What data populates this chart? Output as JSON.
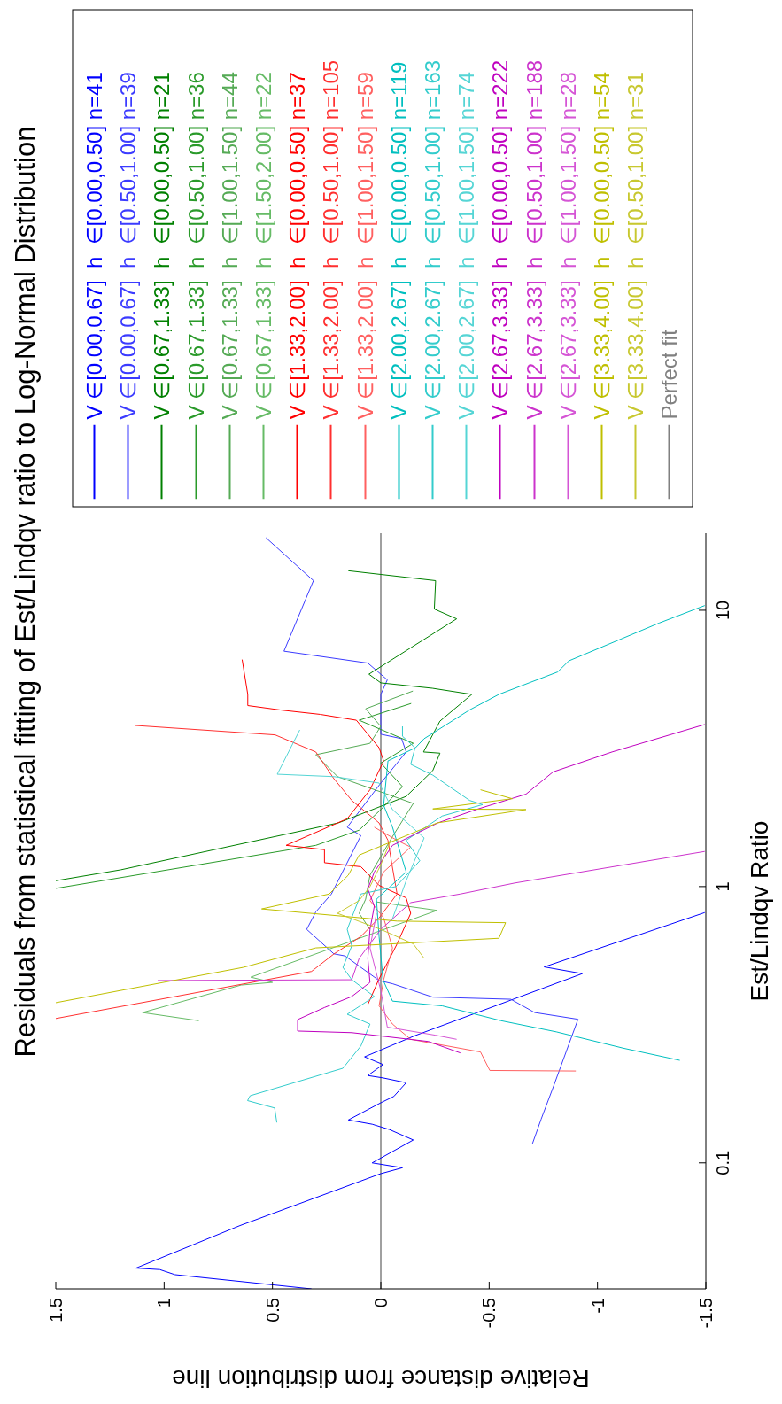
{
  "chart_data": {
    "type": "line",
    "title": "Residuals from statistical fitting of Est/Lindqv ratio to Log-Normal Distribution",
    "xlabel": "Relative distance from distribution line",
    "ylabel": "Est/Lindqv Ratio",
    "log": "y",
    "grid": false,
    "legend": "top",
    "marker": "none",
    "line_style": "solid",
    "xlim": [
      1.5,
      -1.5
    ],
    "ylim": [
      0.035,
      19
    ],
    "xticks": [
      1.5,
      1,
      0.5,
      0,
      -0.5,
      -1,
      -1.5
    ],
    "yticks": [
      0.1,
      1,
      10
    ],
    "series": [
      {
        "name": "V ∈[0.00,0.67]  h  ∈[0.00,0.50] n=41",
        "color": "#0000ff",
        "values": [
          0.035,
          0.0394,
          0.0411,
          0.0416,
          0.0593,
          0.0914,
          0.096,
          0.1,
          0.121,
          0.132,
          0.138,
          0.143,
          0.165,
          0.174,
          0.195,
          0.203,
          0.207,
          0.227,
          0.242,
          0.289,
          0.484,
          0.512,
          0.805
        ],
        "x": [
          0.32,
          0.95,
          1.02,
          1.13,
          0.65,
          0,
          -0.1,
          0.04,
          -0.15,
          -0.04,
          0.04,
          0.15,
          0,
          -0.06,
          -0.117,
          -0.01,
          0.06,
          -0.01,
          0.075,
          -0.159,
          -0.93,
          -0.754,
          -1.495
        ]
      },
      {
        "name": "V ∈[0.00,0.67]  h  ∈[0.50,1.00] n=39",
        "color": "#3b3bff",
        "values": [
          0.1175,
          0.144,
          0.192,
          0.331,
          0.35,
          0.391,
          0.398,
          0.445,
          0.457,
          0.561,
          0.571,
          0.7,
          0.81,
          0.94,
          1.53,
          1.64,
          2.37,
          3.07,
          3.43,
          3.56,
          4.96,
          5.6,
          6.44,
          7.11,
          12.8,
          18.3
        ],
        "x": [
          -0.7,
          -0.74,
          -0.8,
          -0.91,
          -0.71,
          -0.6,
          -0.24,
          -0.054,
          0.008,
          0.165,
          0.217,
          0.342,
          0.3,
          0.228,
          0.092,
          0.155,
          0,
          -0.117,
          -0.096,
          0,
          0,
          -0.03,
          0.06,
          0.447,
          0.311,
          0.53
        ]
      },
      {
        "name": "V ∈[0.67,1.33]  h  ∈[0.00,0.50] n=21",
        "color": "#008000",
        "values": [
          1.05,
          1.15,
          1.7,
          2.12,
          2.63,
          3.04,
          3.07,
          3.97,
          4.96,
          5.22,
          5.46,
          5.87,
          9.31,
          10.1,
          12.8,
          13.9
        ],
        "x": [
          1.5,
          1.2,
          0.196,
          -0.117,
          -0.24,
          -0.273,
          -0.197,
          -0.273,
          -0.42,
          -0.238,
          0,
          0.055,
          -0.35,
          -0.247,
          -0.253,
          0.15
        ]
      },
      {
        "name": "V ∈[0.67,1.33]  h  ∈[0.50,1.00] n=36",
        "color": "#2a9a2a",
        "values": [
          0.985,
          1.41,
          1.6,
          1.9,
          2.3,
          2.8,
          3.3,
          4,
          4.6
        ],
        "x": [
          1.5,
          0.3,
          0.1,
          0,
          -0.1,
          0,
          -0.15,
          0.1,
          -0.14
        ]
      },
      {
        "name": "V ∈[0.67,1.33]  h  ∈[1.00,1.50] n=44",
        "color": "#55aa55",
        "values": [
          0.7,
          0.8,
          0.9,
          1.1,
          1.5,
          2,
          2.5,
          3,
          3.3,
          3.8,
          4.4,
          5.1
        ],
        "x": [
          0.05,
          0.1,
          0.07,
          0.05,
          -0.05,
          -0.15,
          0.2,
          0.3,
          0.05,
          0,
          0.07,
          -0.148
        ]
      },
      {
        "name": "V ∈[0.67,1.33]  h  ∈[1.50,2.00] n=22",
        "color": "#66bb66",
        "values": [
          0.327,
          0.35,
          0.44,
          0.45,
          0.47,
          0.82,
          0.88
        ],
        "x": [
          0.84,
          1.1,
          0.645,
          0.5,
          0.6,
          -0.26,
          0.02
        ]
      },
      {
        "name": "V ∈[1.33,2.00]  h  ∈[0.00,0.50] n=37",
        "color": "#ff0000",
        "values": [
          0.374,
          0.46,
          0.62,
          0.8,
          0.91,
          1.01,
          1.18,
          1.22,
          1.36,
          1.41,
          1.76,
          2.24,
          2.85,
          3.18,
          4,
          4.2,
          4.35,
          4.52,
          4.96,
          6.63
        ],
        "x": [
          0.06,
          0.01,
          -0.075,
          -0.138,
          -0.117,
          0.008,
          0.092,
          0.26,
          0.26,
          0.437,
          0.155,
          0.05,
          -0.013,
          0.008,
          0.113,
          0.28,
          0.457,
          0.614,
          0.614,
          0.64
        ]
      },
      {
        "name": "V ∈[1.33,2.00]  h  ∈[0.50,1.00] n=105",
        "color": "#ff3030",
        "values": [
          0.333,
          0.493,
          0.57,
          0.66,
          0.77,
          0.94,
          1.22,
          1.47,
          1.7,
          2.05,
          2.46,
          3.07,
          3.54,
          3.83
        ],
        "x": [
          1.5,
          0.32,
          0.217,
          0.092,
          0.008,
          -0.075,
          -0.05,
          -0.033,
          0.008,
          0.134,
          0.217,
          0.3,
          0.488,
          1.135
        ]
      },
      {
        "name": "V ∈[1.33,2.00]  h  ∈[1.00,1.50] n=59",
        "color": "#ff6060",
        "values": [
          0.215,
          0.216,
          0.252,
          0.28,
          0.318,
          0.37,
          0.46,
          0.6,
          0.77,
          0.89,
          1.13,
          1.39,
          1.47,
          1.64
        ],
        "x": [
          -0.9,
          -0.503,
          -0.46,
          -0.138,
          -0.054,
          0.008,
          -0.013,
          -0.054,
          -0.013,
          0.05,
          -0.013,
          -0.138,
          -0.075,
          0.03
        ]
      },
      {
        "name": "V ∈[2.00,2.67]  h  ∈[0.00,0.50] n=119",
        "color": "#00bfbf",
        "values": [
          0.235,
          0.26,
          0.298,
          0.327,
          0.37,
          0.385,
          0.46,
          0.66,
          0.9,
          1.13,
          1.64,
          1.97,
          2.85,
          3.18,
          3.43,
          4.36,
          4.96,
          5.98,
          6.56,
          9,
          10.4
        ],
        "x": [
          -1.38,
          -1.12,
          -0.81,
          -0.555,
          -0.284,
          -0.054,
          -0.01,
          0.008,
          0.02,
          -0.117,
          -0.054,
          -0.013,
          -0.033,
          -0.16,
          -0.2,
          -0.41,
          -0.545,
          -0.816,
          -0.868,
          -1.286,
          -1.495
        ]
      },
      {
        "name": "V ∈[2.00,2.67]  h  ∈[0.50,1.00] n=163",
        "color": "#33cccc",
        "values": [
          0.14,
          0.158,
          0.168,
          0.175,
          0.22,
          0.265,
          0.318,
          0.345,
          0.4,
          0.46,
          0.51,
          0.61,
          0.7,
          0.94,
          1,
          1.24,
          1.47,
          1.8,
          1.98,
          2.05,
          2.53,
          2.77,
          3.18,
          3.5,
          3.8
        ],
        "x": [
          0.48,
          0.49,
          0.615,
          0.603,
          0.175,
          0.092,
          0.05,
          0.155,
          0.03,
          0.134,
          0.175,
          0.134,
          0.155,
          0.092,
          -0.07,
          -0.18,
          -0.117,
          -0.283,
          -0.47,
          -0.41,
          -0.24,
          -0.138,
          -0.158,
          -0.1,
          -0.1
        ]
      },
      {
        "name": "V ∈[2.00,2.67]  h  ∈[1.00,1.50] n=74",
        "color": "#55d5d5",
        "values": [
          0.75,
          1.05,
          1.5,
          1.9,
          2.37,
          2.5,
          2.55,
          3.69
        ],
        "x": [
          -0.05,
          -0.117,
          -0.2,
          -0.054,
          0.008,
          0.217,
          0.478,
          0.374
        ]
      },
      {
        "name": "V ∈[2.67,3.33]  h  ∈[0.00,0.50] n=222",
        "color": "#bf00bf",
        "values": [
          0.25,
          0.275,
          0.296,
          0.3,
          0.33,
          0.365,
          0.4,
          0.45,
          0.55,
          0.7,
          0.85,
          0.98,
          1.13,
          1.41,
          1.7,
          1.9,
          2.16,
          2.6,
          3.07,
          3.86
        ],
        "x": [
          -0.367,
          -0.22,
          0.134,
          0.384,
          0.384,
          0.26,
          0.134,
          0.05,
          0.06,
          0.05,
          0.03,
          0.06,
          0.03,
          -0.054,
          -0.263,
          -0.44,
          -0.67,
          -0.795,
          -1.067,
          -1.495
        ]
      },
      {
        "name": "V ∈[2.67,3.33]  h  ∈[0.50,1.00] n=188",
        "color": "#cc33cc",
        "values": [
          0.457,
          0.46,
          0.55,
          0.7,
          0.875,
          0.94,
          1.03,
          1.34
        ],
        "x": [
          1.03,
          0.134,
          0.1,
          0,
          -0.138,
          -0.367,
          -0.618,
          -1.495
        ]
      },
      {
        "name": "V ∈[2.67,3.33]  h  ∈[1.00,1.50] n=28",
        "color": "#d555d5",
        "values": [
          0.28,
          0.29,
          0.31,
          0.42,
          0.6,
          0.8
        ],
        "x": [
          -0.35,
          -0.25,
          -0.03,
          0,
          0.05,
          0.02
        ]
      },
      {
        "name": "V ∈[3.33,4.00]  h  ∈[0.00,0.50] n=54",
        "color": "#bfbf00",
        "values": [
          0.38,
          0.51,
          0.6,
          0.65,
          0.74,
          0.75,
          0.83,
          0.94,
          1.1,
          1.3,
          1.7,
          1.9,
          1.91,
          2.08,
          2.24
        ],
        "x": [
          1.5,
          0.635,
          0.3,
          -0.545,
          -0.576,
          -0.075,
          0.55,
          0.238,
          0.15,
          0.1,
          -0.26,
          -0.67,
          -0.24,
          -0.607,
          -0.46
        ]
      },
      {
        "name": "V ∈[3.33,4.00]  h  ∈[0.50,1.00] n=31",
        "color": "#c8c830",
        "values": [
          0.55,
          0.62,
          0.7,
          0.8,
          0.89,
          1,
          1.2,
          1.5
        ],
        "x": [
          -0.2,
          -0.15,
          0,
          0.2,
          0.1,
          0.05,
          0,
          -0.05
        ]
      }
    ],
    "ref_lines": [
      {
        "axis": "x",
        "value": 0,
        "label": "Perfect fit",
        "color": "#808080"
      }
    ]
  }
}
